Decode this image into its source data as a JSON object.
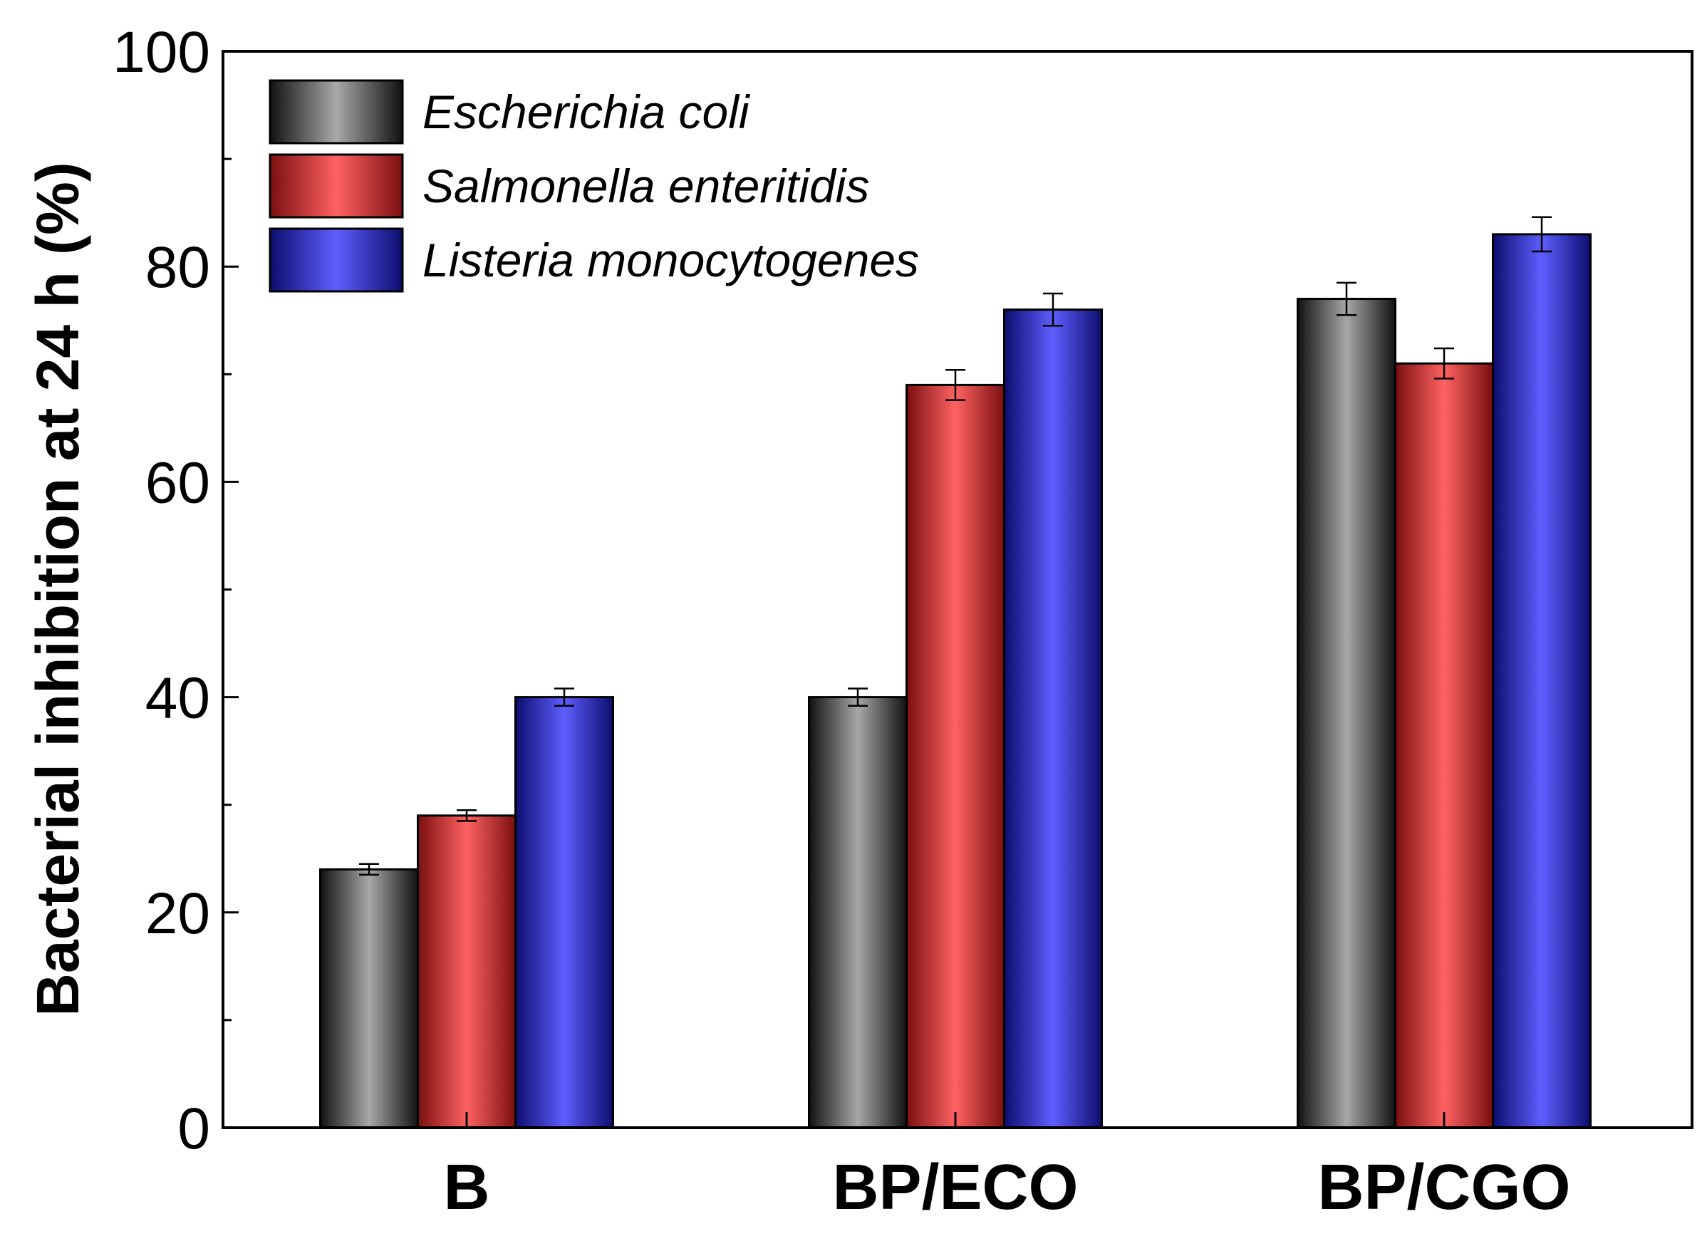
{
  "chart_data": {
    "type": "bar",
    "title": "",
    "xlabel": "",
    "ylabel": "Bacterial inhibition at 24 h (%)",
    "ylim": [
      0,
      100
    ],
    "yticks": [
      0,
      20,
      40,
      60,
      80,
      100
    ],
    "categories": [
      "B",
      "BP/ECO",
      "BP/CGO"
    ],
    "series": [
      {
        "name": "Escherichia coli",
        "color": "#9a9a9a",
        "values": [
          24,
          40,
          77
        ],
        "errors": [
          0.5,
          0.8,
          1.5
        ]
      },
      {
        "name": "Salmonella enteritidis",
        "color": "#ff6060",
        "values": [
          29,
          69,
          71
        ],
        "errors": [
          0.5,
          1.4,
          1.4
        ]
      },
      {
        "name": "Listeria monocytogenes",
        "color": "#5c5cff",
        "values": [
          40,
          76,
          83
        ],
        "errors": [
          0.8,
          1.5,
          1.6
        ]
      }
    ],
    "legend_position": "top-left",
    "grid": false
  }
}
